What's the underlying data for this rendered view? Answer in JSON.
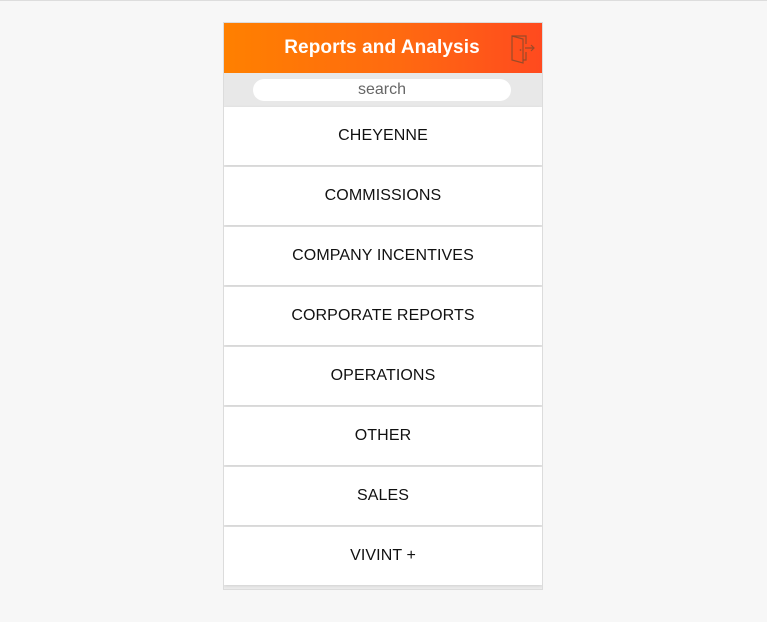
{
  "header": {
    "title": "Reports and Analysis",
    "logout_icon": "logout-door-icon",
    "gradient_start": "#ff8000",
    "gradient_end": "#ff4a1f"
  },
  "search": {
    "placeholder": "search",
    "value": ""
  },
  "menu": {
    "items": [
      {
        "label": "CHEYENNE"
      },
      {
        "label": "COMMISSIONS"
      },
      {
        "label": "COMPANY INCENTIVES"
      },
      {
        "label": "CORPORATE REPORTS"
      },
      {
        "label": "OPERATIONS"
      },
      {
        "label": "OTHER"
      },
      {
        "label": "SALES"
      },
      {
        "label": "VIVINT +"
      }
    ]
  }
}
